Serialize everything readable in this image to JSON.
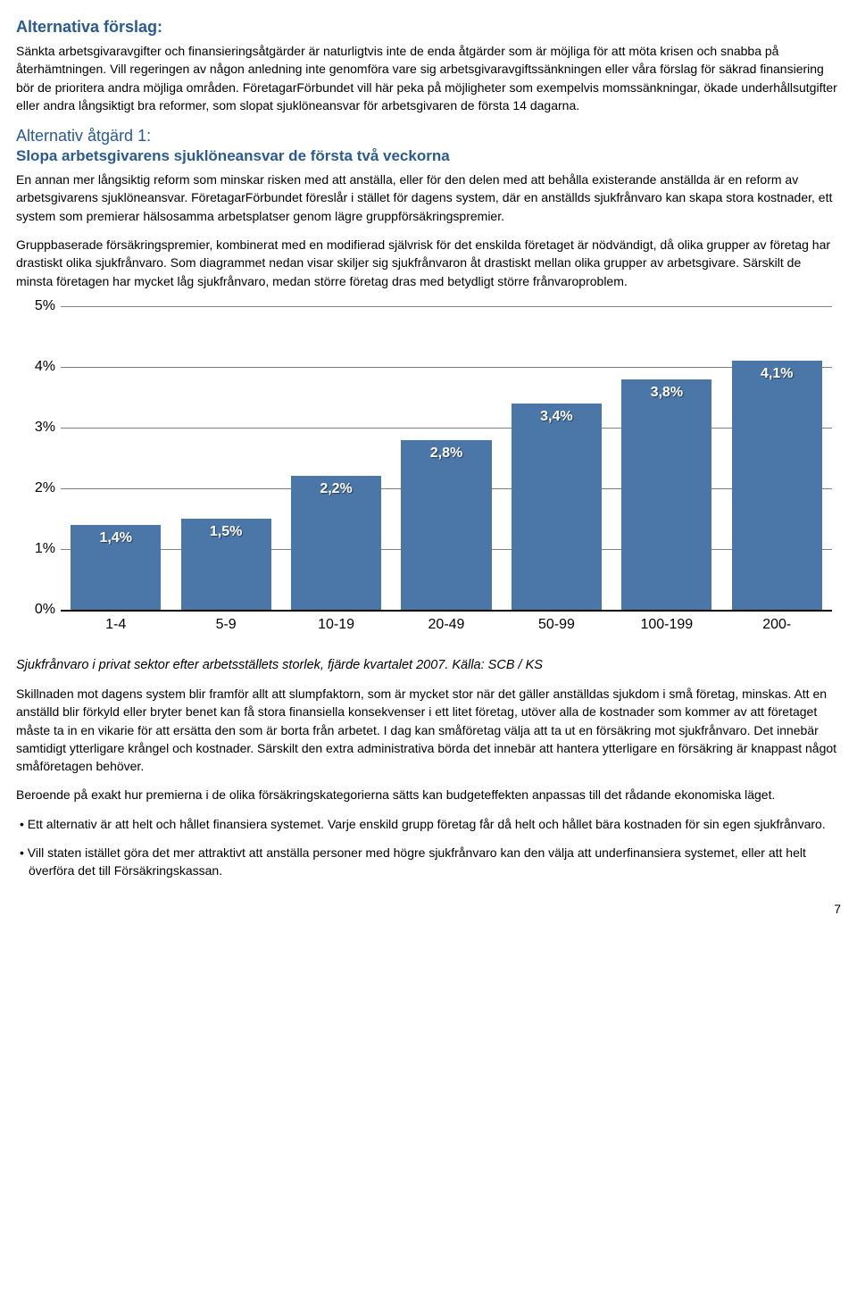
{
  "heading1": "Alternativa förslag:",
  "para1": "Sänkta arbetsgivaravgifter och finansieringsåtgärder är naturligtvis inte de enda åtgärder som är möjliga för att möta krisen och snabba på återhämtningen. Vill regeringen av någon anledning inte genomföra vare sig arbetsgivaravgiftssänkningen eller våra förslag för säkrad finansiering bör de prioritera andra möjliga områden. FöretagarFörbundet vill här peka på möjligheter som exempelvis momssänkningar, ökade underhållsutgifter eller andra långsiktigt bra reformer, som slopat sjuklöneansvar för arbetsgivaren de första 14 dagarna.",
  "alt1_title": "Alternativ åtgärd 1:",
  "alt1_sub": "Slopa arbetsgivarens sjuklöneansvar de första två veckorna",
  "para2": "En annan mer långsiktig reform som minskar risken med att anställa, eller för den delen med att behålla existerande anställda är en reform av arbetsgivarens sjuklöneansvar. FöretagarFörbundet föreslår i stället för dagens system, där en anställds sjukfrånvaro kan skapa stora kostnader, ett system som premierar hälsosamma arbetsplatser genom lägre gruppförsäkringspremier.",
  "para3": "Gruppbaserade försäkringspremier, kombinerat med en modifierad självrisk för det enskilda företaget är nödvändigt, då olika grupper av företag har drastiskt olika sjukfrånvaro. Som diagrammet nedan visar skiljer sig sjukfrånvaron åt drastiskt mellan olika grupper av arbetsgivare. Särskilt de minsta företagen har mycket låg sjukfrånvaro, medan större företag dras med betydligt större frånvaroproblem.",
  "chart": {
    "ymax": 5,
    "yticks": [
      {
        "val": 5,
        "label": "5%"
      },
      {
        "val": 4,
        "label": "4%"
      },
      {
        "val": 3,
        "label": "3%"
      },
      {
        "val": 2,
        "label": "2%"
      },
      {
        "val": 1,
        "label": "1%"
      },
      {
        "val": 0,
        "label": "0%"
      }
    ],
    "bar_color": "#4a76a8",
    "grid_color": "#808080",
    "categories": [
      "1-4",
      "5-9",
      "10-19",
      "20-49",
      "50-99",
      "100-199",
      "200-"
    ],
    "values": [
      1.4,
      1.5,
      2.2,
      2.8,
      3.4,
      3.8,
      4.1
    ],
    "value_labels": [
      "1,4%",
      "1,5%",
      "2,2%",
      "2,8%",
      "3,4%",
      "3,8%",
      "4,1%"
    ]
  },
  "caption": "Sjukfrånvaro i privat sektor efter arbetsställets storlek, fjärde kvartalet 2007. Källa: SCB / KS",
  "para4": "Skillnaden mot dagens system blir framför allt att slumpfaktorn, som är mycket stor när det gäller anställdas sjukdom i små företag, minskas. Att en anställd blir förkyld eller bryter benet kan få stora finansiella konsekvenser i ett litet företag, utöver alla de kostnader som kommer av att företaget måste ta in en vikarie för att ersätta den som är borta från arbetet. I dag kan småföretag välja att ta ut en försäkring mot sjukfrånvaro. Det innebär samtidigt ytterligare krångel och kostnader. Särskilt den extra administrativa börda det innebär att hantera ytterligare en försäkring är knappast något småföretagen behöver.",
  "para5": "Beroende på exakt hur premierna i de olika försäkringskategorierna sätts kan budgeteffekten anpassas till det rådande ekonomiska läget.",
  "bullet1": "Ett alternativ är att helt och hållet finansiera systemet. Varje enskild grupp företag får då helt och hållet bära kostnaden för sin egen sjukfrånvaro.",
  "bullet2": "Vill staten istället göra det mer attraktivt att anställa personer med högre sjukfrånvaro kan den välja att underfinansiera systemet, eller att helt överföra det till Försäkringskassan.",
  "pagenum": "7"
}
